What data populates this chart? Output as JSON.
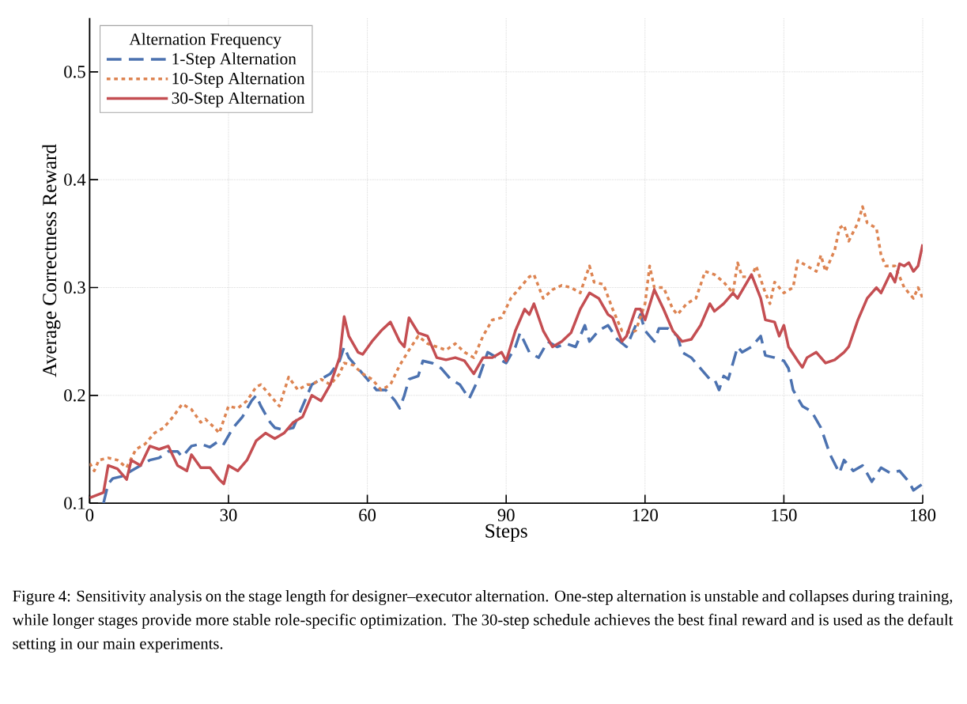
{
  "chart_data": {
    "type": "line",
    "xlabel": "Steps",
    "ylabel": "Average Correctness Reward",
    "legend_title": "Alternation Frequency",
    "legend": "top left",
    "grid": true,
    "xlim": [
      0,
      180
    ],
    "xticks": [
      0,
      30,
      60,
      90,
      120,
      150,
      180
    ],
    "ylim": [
      0.1,
      0.55
    ],
    "yticks": [
      0.1,
      0.2,
      0.3,
      0.4,
      0.5
    ],
    "series": [
      {
        "name": "1-Step Alternation",
        "color": "#4c72b0",
        "line_style": "dashed",
        "x": [
          3,
          4,
          5,
          7,
          9,
          11,
          13,
          15,
          17,
          19,
          20,
          22,
          24,
          26,
          28,
          29,
          31,
          33,
          35,
          36,
          37,
          39,
          40,
          42,
          44,
          46,
          48,
          50,
          52,
          54,
          55,
          56,
          58,
          60,
          62,
          64,
          66,
          67,
          68,
          69,
          71,
          72,
          74,
          76,
          78,
          80,
          82,
          84,
          86,
          88,
          90,
          92,
          93,
          95,
          97,
          99,
          101,
          103,
          105,
          107,
          108,
          110,
          112,
          114,
          116,
          117,
          119,
          120,
          122,
          123,
          125,
          127,
          128,
          130,
          132,
          134,
          135,
          136,
          137,
          138,
          140,
          141,
          143,
          145,
          146,
          148,
          150,
          151,
          152,
          154,
          156,
          158,
          160,
          162,
          163,
          165,
          167,
          169,
          171,
          173,
          175,
          177,
          178,
          180
        ],
        "values": [
          0.1,
          0.118,
          0.123,
          0.125,
          0.13,
          0.135,
          0.14,
          0.142,
          0.148,
          0.148,
          0.143,
          0.153,
          0.155,
          0.152,
          0.158,
          0.155,
          0.17,
          0.18,
          0.195,
          0.2,
          0.19,
          0.175,
          0.17,
          0.168,
          0.17,
          0.19,
          0.21,
          0.215,
          0.22,
          0.232,
          0.245,
          0.235,
          0.225,
          0.215,
          0.205,
          0.205,
          0.195,
          0.188,
          0.2,
          0.215,
          0.218,
          0.232,
          0.23,
          0.225,
          0.215,
          0.21,
          0.197,
          0.215,
          0.24,
          0.235,
          0.23,
          0.245,
          0.258,
          0.24,
          0.235,
          0.25,
          0.245,
          0.248,
          0.245,
          0.265,
          0.25,
          0.26,
          0.265,
          0.252,
          0.245,
          0.255,
          0.275,
          0.26,
          0.25,
          0.262,
          0.262,
          0.255,
          0.24,
          0.235,
          0.225,
          0.215,
          0.215,
          0.205,
          0.218,
          0.215,
          0.245,
          0.24,
          0.245,
          0.255,
          0.237,
          0.235,
          0.232,
          0.225,
          0.205,
          0.19,
          0.185,
          0.17,
          0.145,
          0.128,
          0.14,
          0.13,
          0.135,
          0.12,
          0.133,
          0.128,
          0.13,
          0.12,
          0.112,
          0.118
        ]
      },
      {
        "name": "10-Step Alternation",
        "color": "#dd8452",
        "line_style": "dotted",
        "x": [
          0,
          1,
          2,
          4,
          6,
          8,
          10,
          12,
          14,
          16,
          18,
          20,
          22,
          24,
          25,
          27,
          28,
          30,
          32,
          34,
          36,
          37,
          39,
          40,
          41,
          43,
          45,
          47,
          48,
          50,
          52,
          54,
          55,
          57,
          59,
          61,
          63,
          65,
          67,
          69,
          71,
          73,
          75,
          77,
          79,
          81,
          83,
          85,
          87,
          89,
          91,
          93,
          95,
          96,
          98,
          100,
          102,
          104,
          106,
          108,
          109,
          111,
          113,
          115,
          117,
          118,
          120,
          121,
          122,
          124,
          126,
          127,
          129,
          131,
          133,
          135,
          137,
          139,
          140,
          141,
          143,
          144,
          146,
          147,
          148,
          150,
          152,
          153,
          155,
          157,
          158,
          159,
          161,
          162,
          163,
          164,
          166,
          167,
          168,
          170,
          171,
          172,
          174,
          176,
          177,
          178,
          179,
          180
        ],
        "values": [
          0.137,
          0.13,
          0.14,
          0.142,
          0.14,
          0.133,
          0.15,
          0.155,
          0.165,
          0.17,
          0.18,
          0.192,
          0.187,
          0.175,
          0.178,
          0.17,
          0.165,
          0.19,
          0.188,
          0.195,
          0.208,
          0.21,
          0.2,
          0.195,
          0.19,
          0.217,
          0.205,
          0.21,
          0.21,
          0.215,
          0.21,
          0.22,
          0.23,
          0.228,
          0.22,
          0.215,
          0.205,
          0.21,
          0.228,
          0.242,
          0.255,
          0.248,
          0.245,
          0.242,
          0.248,
          0.24,
          0.235,
          0.255,
          0.27,
          0.272,
          0.29,
          0.3,
          0.31,
          0.312,
          0.29,
          0.298,
          0.302,
          0.3,
          0.295,
          0.32,
          0.305,
          0.303,
          0.28,
          0.26,
          0.258,
          0.26,
          0.285,
          0.32,
          0.3,
          0.3,
          0.28,
          0.275,
          0.285,
          0.29,
          0.315,
          0.312,
          0.305,
          0.295,
          0.323,
          0.31,
          0.31,
          0.32,
          0.295,
          0.285,
          0.305,
          0.295,
          0.3,
          0.325,
          0.32,
          0.315,
          0.33,
          0.315,
          0.335,
          0.355,
          0.358,
          0.343,
          0.36,
          0.375,
          0.36,
          0.355,
          0.33,
          0.32,
          0.32,
          0.3,
          0.295,
          0.29,
          0.3,
          0.29
        ]
      },
      {
        "name": "30-Step Alternation",
        "color": "#c44e52",
        "line_style": "solid",
        "x": [
          0,
          3,
          4,
          6,
          8,
          9,
          11,
          13,
          15,
          17,
          19,
          21,
          22,
          24,
          26,
          28,
          29,
          30,
          32,
          34,
          36,
          38,
          40,
          42,
          44,
          46,
          48,
          50,
          52,
          54,
          55,
          56,
          58,
          59,
          61,
          63,
          65,
          67,
          68,
          69,
          71,
          73,
          75,
          77,
          79,
          81,
          83,
          85,
          87,
          89,
          90,
          92,
          94,
          95,
          96,
          98,
          100,
          102,
          104,
          106,
          108,
          110,
          112,
          113,
          115,
          116,
          118,
          119,
          120,
          122,
          124,
          126,
          128,
          130,
          132,
          134,
          135,
          137,
          139,
          140,
          143,
          145,
          146,
          148,
          149,
          150,
          151,
          153,
          154,
          155,
          157,
          159,
          161,
          163,
          164,
          166,
          168,
          170,
          171,
          173,
          174,
          175,
          176,
          177,
          178,
          179,
          180
        ],
        "values": [
          0.105,
          0.11,
          0.135,
          0.132,
          0.122,
          0.14,
          0.135,
          0.153,
          0.15,
          0.153,
          0.135,
          0.13,
          0.145,
          0.133,
          0.133,
          0.122,
          0.118,
          0.135,
          0.13,
          0.14,
          0.158,
          0.165,
          0.16,
          0.165,
          0.175,
          0.18,
          0.2,
          0.195,
          0.21,
          0.235,
          0.273,
          0.255,
          0.24,
          0.238,
          0.25,
          0.26,
          0.268,
          0.25,
          0.245,
          0.272,
          0.258,
          0.255,
          0.235,
          0.233,
          0.235,
          0.232,
          0.22,
          0.235,
          0.235,
          0.24,
          0.232,
          0.26,
          0.28,
          0.275,
          0.285,
          0.26,
          0.245,
          0.25,
          0.258,
          0.28,
          0.295,
          0.29,
          0.275,
          0.272,
          0.25,
          0.255,
          0.28,
          0.28,
          0.27,
          0.298,
          0.28,
          0.26,
          0.25,
          0.252,
          0.265,
          0.285,
          0.278,
          0.285,
          0.295,
          0.29,
          0.312,
          0.29,
          0.27,
          0.268,
          0.255,
          0.265,
          0.245,
          0.232,
          0.226,
          0.235,
          0.24,
          0.23,
          0.233,
          0.24,
          0.245,
          0.27,
          0.29,
          0.3,
          0.295,
          0.313,
          0.305,
          0.322,
          0.32,
          0.323,
          0.315,
          0.32,
          0.34
        ]
      }
    ],
    "annotations": [
      "Figure 4: Sensitivity analysis on the stage length for designer–executor alternation. One-step alternation is unstable and collapses during training, while longer stages provide more stable role-specific optimization. The 30-step schedule achieves the best final reward and is used as the default setting in our main experiments."
    ]
  }
}
